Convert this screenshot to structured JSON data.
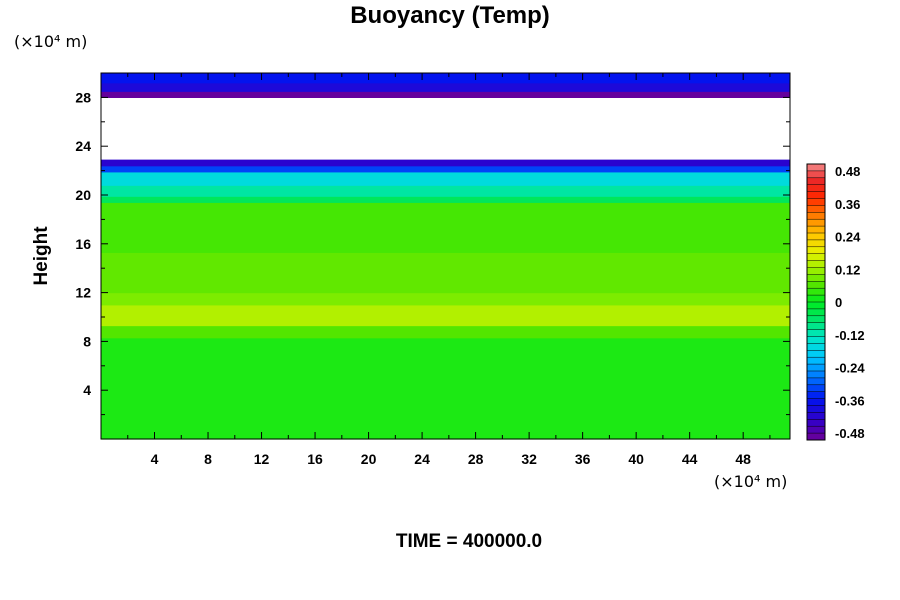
{
  "chart_data": {
    "type": "heatmap",
    "title": "Buoyancy (Temp)",
    "ylabel": "Height",
    "xlabel": "",
    "y_unit": "(×10⁴ m)",
    "x_unit": "(×10⁴ m)",
    "xlim": [
      0,
      51.5
    ],
    "ylim": [
      0,
      30
    ],
    "xticks": [
      4,
      8,
      12,
      16,
      20,
      24,
      28,
      32,
      36,
      40,
      44,
      48
    ],
    "yticks": [
      4,
      8,
      12,
      16,
      20,
      24,
      28
    ],
    "colorbar": {
      "min": -0.48,
      "max": 0.48,
      "tick_labels": [
        "0.48",
        "0.36",
        "0.24",
        "0.12",
        "0",
        "-0.12",
        "-0.24",
        "-0.36",
        "-0.48"
      ]
    },
    "bands": [
      {
        "y0": 0,
        "y1": 8.3,
        "value": 0.02
      },
      {
        "y0": 8.3,
        "y1": 9.3,
        "value": 0.06
      },
      {
        "y0": 9.3,
        "y1": 11.0,
        "value": 0.13
      },
      {
        "y0": 11.0,
        "y1": 12.0,
        "value": 0.09
      },
      {
        "y0": 12.0,
        "y1": 15.3,
        "value": 0.07
      },
      {
        "y0": 15.3,
        "y1": 19.4,
        "value": 0.05
      },
      {
        "y0": 19.4,
        "y1": 19.9,
        "value": -0.05
      },
      {
        "y0": 19.9,
        "y1": 20.8,
        "value": -0.1
      },
      {
        "y0": 20.8,
        "y1": 21.9,
        "value": -0.15
      },
      {
        "y0": 21.9,
        "y1": 22.4,
        "value": -0.3
      },
      {
        "y0": 22.4,
        "y1": 22.9,
        "value": -0.4
      },
      {
        "y0": 28.0,
        "y1": 28.5,
        "value": -0.47
      },
      {
        "y0": 28.5,
        "y1": 29.2,
        "value": -0.38
      },
      {
        "y0": 29.2,
        "y1": 30.0,
        "value": -0.34
      }
    ]
  },
  "footer": {
    "time_label": "TIME = 400000.0"
  }
}
